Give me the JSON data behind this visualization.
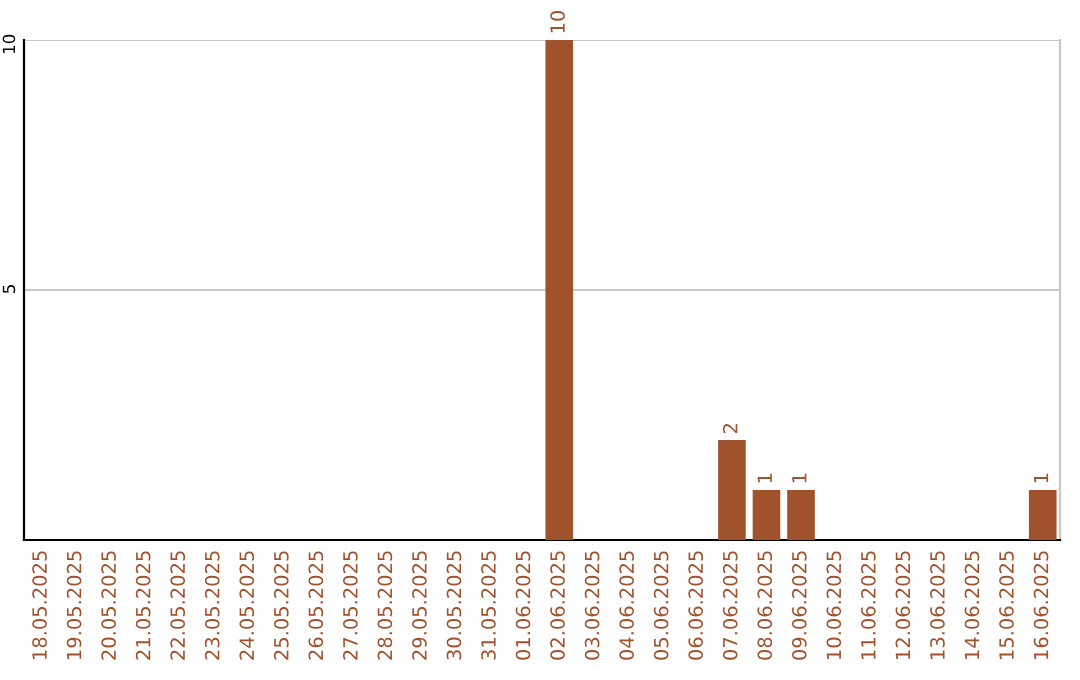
{
  "chart_data": {
    "type": "bar",
    "categories": [
      "18.05.2025",
      "19.05.2025",
      "20.05.2025",
      "21.05.2025",
      "22.05.2025",
      "23.05.2025",
      "24.05.2025",
      "25.05.2025",
      "26.05.2025",
      "27.05.2025",
      "28.05.2025",
      "29.05.2025",
      "30.05.2025",
      "31.05.2025",
      "01.06.2025",
      "02.06.2025",
      "03.06.2025",
      "04.06.2025",
      "05.06.2025",
      "06.06.2025",
      "07.06.2025",
      "08.06.2025",
      "09.06.2025",
      "10.06.2025",
      "11.06.2025",
      "12.06.2025",
      "13.06.2025",
      "14.06.2025",
      "15.06.2025",
      "16.06.2025"
    ],
    "values": [
      0,
      0,
      0,
      0,
      0,
      0,
      0,
      0,
      0,
      0,
      0,
      0,
      0,
      0,
      0,
      10,
      0,
      0,
      0,
      0,
      2,
      1,
      1,
      0,
      0,
      0,
      0,
      0,
      0,
      1
    ],
    "value_labels": [
      null,
      null,
      null,
      null,
      null,
      null,
      null,
      null,
      null,
      null,
      null,
      null,
      null,
      null,
      null,
      "10",
      null,
      null,
      null,
      null,
      "2",
      "1",
      "1",
      null,
      null,
      null,
      null,
      null,
      null,
      "1"
    ],
    "color": "#a0522d",
    "ylim": [
      0,
      10
    ],
    "yticks": [
      5,
      10
    ],
    "grid": "y"
  }
}
